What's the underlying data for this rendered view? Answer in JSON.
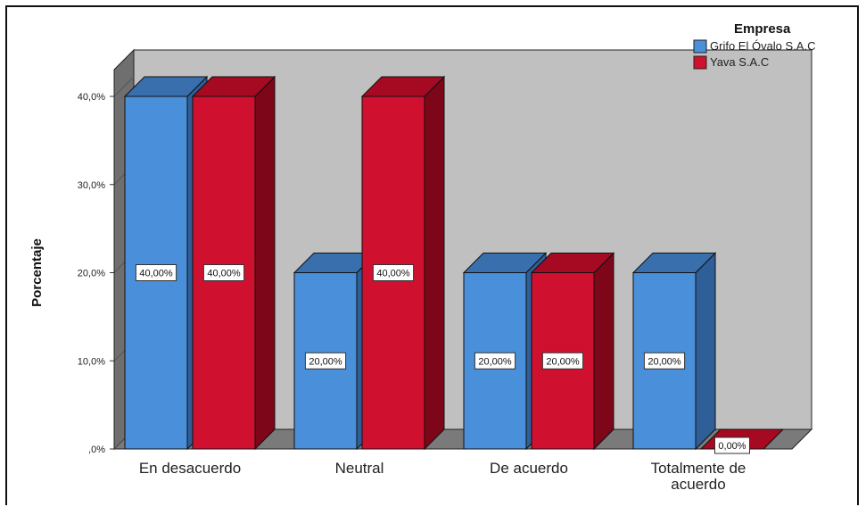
{
  "chart_data": {
    "type": "bar",
    "categories": [
      "En desacuerdo",
      "Neutral",
      "De acuerdo",
      "Totalmente de acuerdo"
    ],
    "category_lines": [
      [
        "En desacuerdo"
      ],
      [
        "Neutral"
      ],
      [
        "De acuerdo"
      ],
      [
        "Totalmente de",
        "acuerdo"
      ]
    ],
    "series": [
      {
        "name": "Grifo El Óvalo S.A.C",
        "values": [
          40,
          20,
          20,
          20
        ],
        "labels": [
          "40,00%",
          "20,00%",
          "20,00%",
          "20,00%"
        ],
        "color": "#4a8fd9",
        "top": "#3a6fae",
        "side": "#2f5f98"
      },
      {
        "name": "Yava S.A.C",
        "values": [
          40,
          40,
          20,
          0
        ],
        "labels": [
          "40,00%",
          "40,00%",
          "20,00%",
          "0,00%"
        ],
        "color": "#d0102f",
        "top": "#a50a22",
        "side": "#7d0618"
      }
    ],
    "yticks": [
      {
        "value": 0,
        "label": ",0%"
      },
      {
        "value": 10,
        "label": "10,0%"
      },
      {
        "value": 20,
        "label": "20,0%"
      },
      {
        "value": 30,
        "label": "30,0%"
      },
      {
        "value": 40,
        "label": "40,0%"
      }
    ],
    "ylabel": "Porcentaje",
    "xlabel": "",
    "ylim": [
      0,
      40
    ],
    "legend": {
      "title": "Empresa",
      "placement": "top-right"
    },
    "grid": false,
    "three_d": true
  }
}
